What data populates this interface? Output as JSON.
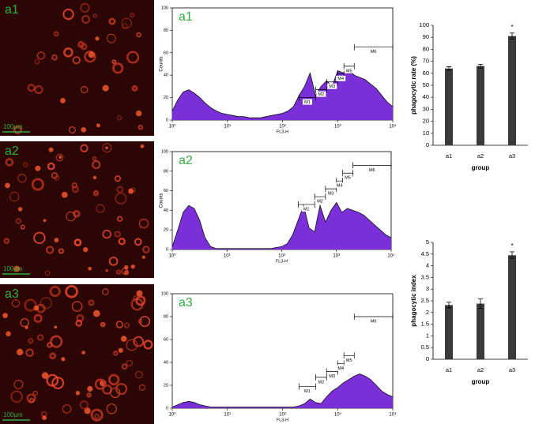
{
  "panels": [
    {
      "label": "a1",
      "scale_bar": "100μm"
    },
    {
      "label": "a2",
      "scale_bar": "100μm"
    },
    {
      "label": "a3",
      "scale_bar": "100μm"
    }
  ],
  "chart_data": [
    {
      "type": "area",
      "title": "a1",
      "xlabel": "FL3-H",
      "ylabel": "Counts",
      "color": "#7a2fd8",
      "xscale": "log",
      "x": [
        1,
        1.26,
        1.58,
        2,
        2.51,
        3.16,
        3.98,
        5.01,
        6.31,
        7.94,
        10,
        12.6,
        15.8,
        20,
        25.1,
        31.6,
        39.8,
        50.1,
        63.1,
        79.4,
        100,
        126,
        158,
        200,
        251,
        316,
        398,
        501,
        631,
        794,
        1000,
        1259,
        1585,
        1995,
        2512,
        3162,
        3981,
        5012,
        6310,
        7943,
        10000
      ],
      "values": [
        8,
        18,
        25,
        27,
        24,
        20,
        15,
        11,
        8,
        6,
        5,
        4,
        3,
        3,
        2,
        2,
        2,
        3,
        4,
        5,
        6,
        8,
        12,
        22,
        30,
        42,
        22,
        30,
        35,
        30,
        44,
        42,
        45,
        40,
        38,
        36,
        32,
        28,
        22,
        16,
        12
      ],
      "xlim": [
        1,
        10000
      ],
      "xticks": [
        {
          "value": 1,
          "label": "10⁰"
        },
        {
          "value": 10,
          "label": "10¹"
        },
        {
          "value": 100,
          "label": "10²"
        },
        {
          "value": 1000,
          "label": "10³"
        },
        {
          "value": 10000,
          "label": "10⁴"
        }
      ],
      "ylim": [
        0,
        100
      ],
      "yticks": [
        0,
        20,
        40,
        60,
        80,
        100
      ],
      "gates": [
        {
          "name": "M1",
          "range": [
            200,
            400
          ],
          "level": 20
        },
        {
          "name": "M2",
          "range": [
            400,
            630
          ],
          "level": 27
        },
        {
          "name": "M3",
          "range": [
            630,
            1000
          ],
          "level": 34
        },
        {
          "name": "M4",
          "range": [
            1000,
            1300
          ],
          "level": 41
        },
        {
          "name": "M5",
          "range": [
            1300,
            2000
          ],
          "level": 48
        },
        {
          "name": "M6",
          "range": [
            2000,
            10000
          ],
          "level": 65
        }
      ]
    },
    {
      "type": "area",
      "title": "a2",
      "xlabel": "FL3-H",
      "ylabel": "Counts",
      "color": "#7a2fd8",
      "xscale": "log",
      "x": [
        1,
        1.26,
        1.58,
        2,
        2.51,
        3.16,
        3.98,
        5.01,
        6.31,
        7.94,
        10,
        12.6,
        15.8,
        20,
        25.1,
        31.6,
        39.8,
        50.1,
        63.1,
        79.4,
        100,
        126,
        158,
        200,
        251,
        316,
        398,
        501,
        631,
        794,
        1000,
        1259,
        1585,
        1995,
        2512,
        3162,
        3981,
        5012,
        6310,
        7943,
        10000
      ],
      "values": [
        3,
        20,
        38,
        45,
        42,
        30,
        12,
        3,
        1,
        1,
        1,
        1,
        1,
        1,
        1,
        1,
        1,
        1,
        1,
        2,
        3,
        6,
        15,
        30,
        45,
        22,
        18,
        45,
        28,
        40,
        48,
        38,
        42,
        40,
        38,
        35,
        30,
        25,
        20,
        15,
        12
      ],
      "xlim": [
        1,
        10000
      ],
      "xticks": [
        {
          "value": 1,
          "label": "10⁰"
        },
        {
          "value": 10,
          "label": "10¹"
        },
        {
          "value": 100,
          "label": "10²"
        },
        {
          "value": 1000,
          "label": "10³"
        },
        {
          "value": 10000,
          "label": "10⁴"
        }
      ],
      "ylim": [
        0,
        100
      ],
      "yticks": [
        0,
        20,
        40,
        60,
        80,
        100
      ],
      "gates": [
        {
          "name": "M1",
          "range": [
            200,
            400
          ],
          "level": 46
        },
        {
          "name": "M2",
          "range": [
            400,
            630
          ],
          "level": 54
        },
        {
          "name": "M3",
          "range": [
            630,
            1000
          ],
          "level": 62
        },
        {
          "name": "M4",
          "range": [
            1000,
            1300
          ],
          "level": 70
        },
        {
          "name": "M5",
          "range": [
            1300,
            2000
          ],
          "level": 78
        },
        {
          "name": "M6",
          "range": [
            2000,
            10000
          ],
          "level": 86
        }
      ]
    },
    {
      "type": "area",
      "title": "a3",
      "xlabel": "FL3-H",
      "color": "#7a2fd8",
      "xscale": "log",
      "x": [
        1,
        1.26,
        1.58,
        2,
        2.51,
        3.16,
        3.98,
        5.01,
        6.31,
        7.94,
        10,
        12.6,
        15.8,
        20,
        25.1,
        31.6,
        39.8,
        50.1,
        63.1,
        79.4,
        100,
        126,
        158,
        200,
        251,
        316,
        398,
        501,
        631,
        794,
        1000,
        1259,
        1585,
        1995,
        2512,
        3162,
        3981,
        5012,
        6310,
        7943,
        10000
      ],
      "values": [
        1,
        3,
        5,
        6,
        5,
        3,
        2,
        1,
        1,
        1,
        1,
        1,
        1,
        1,
        1,
        1,
        1,
        1,
        1,
        1,
        1,
        1,
        1,
        2,
        4,
        8,
        5,
        4,
        10,
        15,
        18,
        22,
        25,
        28,
        30,
        28,
        25,
        20,
        15,
        12,
        10
      ],
      "xlim": [
        1,
        10000
      ],
      "xticks": [
        {
          "value": 1,
          "label": "10⁰"
        },
        {
          "value": 10,
          "label": "10¹"
        },
        {
          "value": 100,
          "label": "10²"
        },
        {
          "value": 1000,
          "label": "10³"
        },
        {
          "value": 10000,
          "label": "10⁴"
        }
      ],
      "ylim": [
        0,
        100
      ],
      "yticks": [
        0,
        20,
        40,
        60,
        80,
        100
      ],
      "gates": [
        {
          "name": "M1",
          "range": [
            200,
            400
          ],
          "level": 19
        },
        {
          "name": "M2",
          "range": [
            400,
            630
          ],
          "level": 27
        },
        {
          "name": "M3",
          "range": [
            630,
            1000
          ],
          "level": 32
        },
        {
          "name": "M4",
          "range": [
            1000,
            1300
          ],
          "level": 39
        },
        {
          "name": "M5",
          "range": [
            1300,
            2000
          ],
          "level": 46
        },
        {
          "name": "M6",
          "range": [
            2000,
            10000
          ],
          "level": 80
        }
      ]
    },
    {
      "type": "bar",
      "xlabel": "group",
      "ylabel": "phagocytic rate (%)",
      "color": "#3a3a3a",
      "categories": [
        "a1",
        "a2",
        "a3"
      ],
      "values": [
        64,
        66,
        91
      ],
      "errors": [
        1.5,
        1.5,
        2.5
      ],
      "ylim": [
        0,
        100
      ],
      "yticks": [
        0,
        10,
        20,
        30,
        40,
        50,
        60,
        70,
        80,
        90,
        100
      ],
      "annotations": [
        {
          "text": "*",
          "x": "a3"
        }
      ]
    },
    {
      "type": "bar",
      "xlabel": "group",
      "ylabel": "phagocytic index",
      "color": "#3a3a3a",
      "categories": [
        "a1",
        "a2",
        "a3"
      ],
      "values": [
        2.32,
        2.38,
        4.45
      ],
      "errors": [
        0.12,
        0.2,
        0.15
      ],
      "ylim": [
        0,
        5
      ],
      "yticks": [
        0,
        0.5,
        1,
        1.5,
        2,
        2.5,
        3,
        3.5,
        4,
        4.5,
        5
      ],
      "annotations": [
        {
          "text": "*",
          "x": "a3"
        }
      ]
    }
  ]
}
